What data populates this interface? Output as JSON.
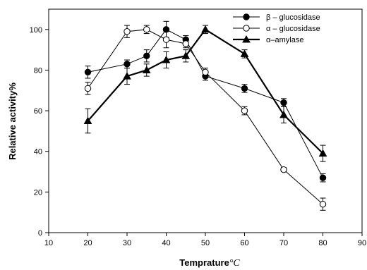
{
  "chart_data": {
    "type": "line",
    "title": "",
    "xlabel": "Temprature",
    "xlabel_unit": "°C",
    "ylabel": "Relative activity%",
    "xlim": [
      10,
      90
    ],
    "ylim": [
      0,
      110
    ],
    "x_ticks": [
      10,
      20,
      30,
      40,
      50,
      60,
      70,
      80,
      90
    ],
    "y_ticks": [
      0,
      20,
      40,
      60,
      80,
      100
    ],
    "grid": false,
    "legend_position": "top-right",
    "series": [
      {
        "name": "β – glucosidase",
        "marker": "filled-circle",
        "line_weight": "thin",
        "x": [
          20,
          30,
          35,
          40,
          45,
          50,
          60,
          70,
          80
        ],
        "y": [
          79,
          83,
          87,
          100,
          95,
          77,
          71,
          64,
          27
        ],
        "err": [
          3,
          2,
          3,
          4,
          2,
          2,
          2,
          2,
          2
        ]
      },
      {
        "name": "α – glucosidase",
        "marker": "open-circle",
        "line_weight": "thin",
        "x": [
          20,
          30,
          35,
          40,
          45,
          50,
          60,
          70,
          80
        ],
        "y": [
          71,
          99,
          100,
          95,
          93,
          79,
          60,
          31,
          14
        ],
        "err": [
          3,
          3,
          2,
          4,
          2,
          2,
          2,
          1,
          3
        ]
      },
      {
        "name": "α–amylase",
        "marker": "filled-triangle",
        "line_weight": "thick",
        "x": [
          20,
          30,
          35,
          40,
          45,
          50,
          60,
          70,
          80
        ],
        "y": [
          55,
          77,
          80,
          85,
          87,
          100,
          88,
          58,
          39
        ],
        "err": [
          6,
          4,
          3,
          4,
          3,
          2,
          2,
          4,
          4
        ]
      }
    ]
  }
}
